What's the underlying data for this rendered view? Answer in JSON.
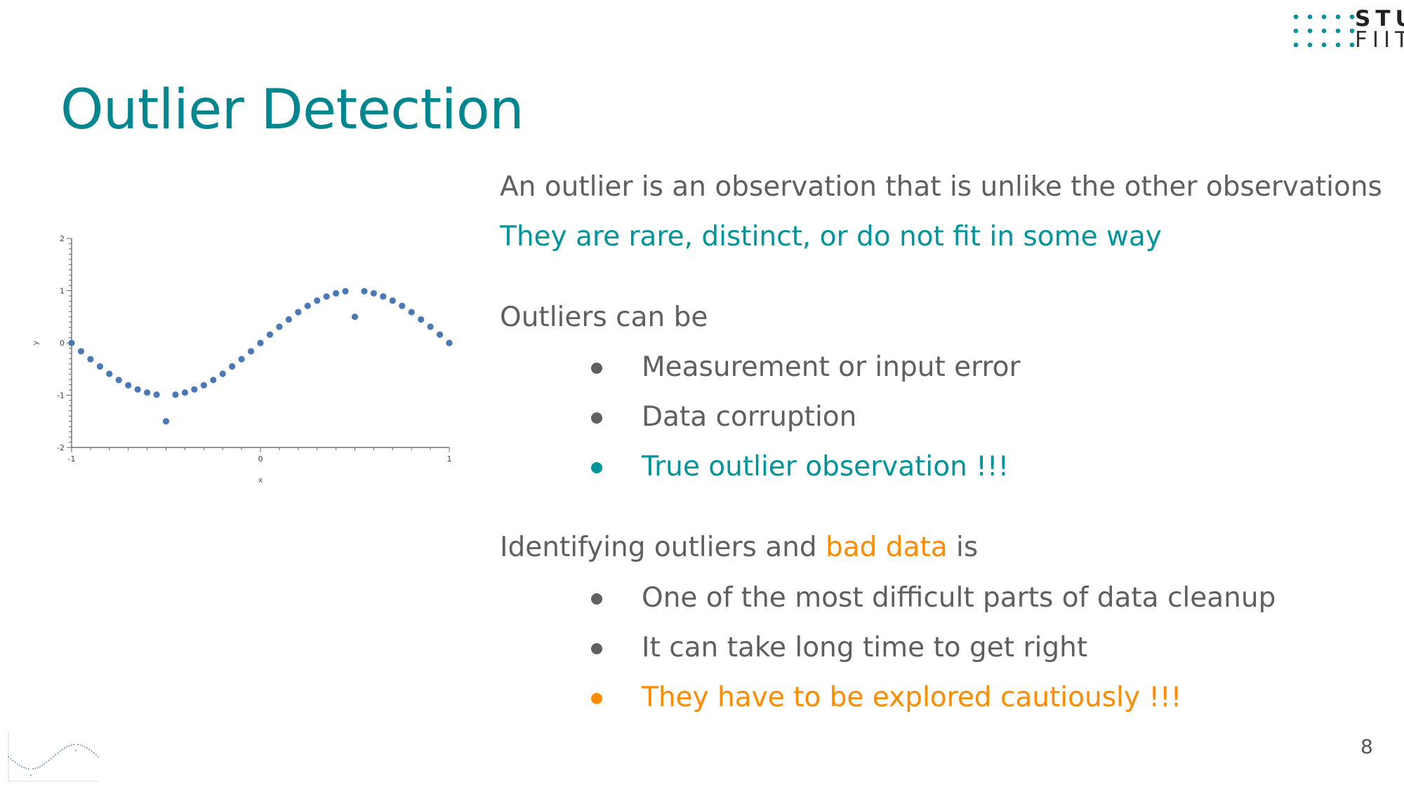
{
  "slide": {
    "title": "Outlier Detection",
    "page_number": "8",
    "logo": {
      "line1": "STU",
      "line2": "FIIT",
      "color": "#0a8f9c"
    },
    "definition": "An outlier is an observation that is unlike the other observations",
    "tagline": "They are rare, distinct, or do not fit in some way",
    "outliers_can_be": {
      "heading": "Outliers can be",
      "items": [
        {
          "text": "Measurement or input error",
          "color": "gray"
        },
        {
          "text": "Data corruption",
          "color": "gray"
        },
        {
          "text": "True outlier observation !!!",
          "color": "teal"
        }
      ]
    },
    "identifying": {
      "heading_before": "Identifying outliers and ",
      "heading_highlight": "bad data",
      "heading_after": " is",
      "items": [
        {
          "text": "One of the most difficult parts of data cleanup",
          "color": "gray"
        },
        {
          "text": "It can take long time to get right",
          "color": "gray"
        },
        {
          "text": "They have to be explored cautiously !!!",
          "color": "orange"
        }
      ]
    }
  },
  "colors": {
    "title": "#00868f",
    "teal": "#00949b",
    "orange": "#ff8c00",
    "text": "#5f5f5f",
    "points": "#4a78b5"
  },
  "chart_data": {
    "type": "scatter",
    "xlabel": "x",
    "ylabel": "y",
    "xlim": [
      -1,
      1
    ],
    "ylim": [
      -2,
      2
    ],
    "xticks": [
      "-1",
      "0",
      "1"
    ],
    "yticks": [
      "2",
      "1",
      "0",
      "-1",
      "-2"
    ],
    "series": [
      {
        "color": "#4a78b5",
        "x": [
          -1.0,
          -0.95,
          -0.9,
          -0.85,
          -0.8,
          -0.75,
          -0.7,
          -0.65,
          -0.6,
          -0.55,
          -0.45,
          -0.4,
          -0.35,
          -0.3,
          -0.25,
          -0.2,
          -0.15,
          -0.1,
          -0.05,
          0.0,
          0.05,
          0.1,
          0.15,
          0.2,
          0.25,
          0.3,
          0.35,
          0.4,
          0.45,
          0.55,
          0.6,
          0.65,
          0.7,
          0.75,
          0.8,
          0.85,
          0.9,
          0.95,
          1.0,
          -0.5,
          0.5
        ],
        "y": [
          0.0,
          -0.16,
          -0.31,
          -0.45,
          -0.59,
          -0.71,
          -0.81,
          -0.89,
          -0.95,
          -0.99,
          -0.99,
          -0.95,
          -0.89,
          -0.81,
          -0.71,
          -0.59,
          -0.45,
          -0.31,
          -0.16,
          0.0,
          0.16,
          0.31,
          0.45,
          0.59,
          0.71,
          0.81,
          0.89,
          0.95,
          0.99,
          0.99,
          0.95,
          0.89,
          0.81,
          0.71,
          0.59,
          0.45,
          0.31,
          0.16,
          0.0,
          -1.5,
          0.5
        ]
      }
    ]
  }
}
